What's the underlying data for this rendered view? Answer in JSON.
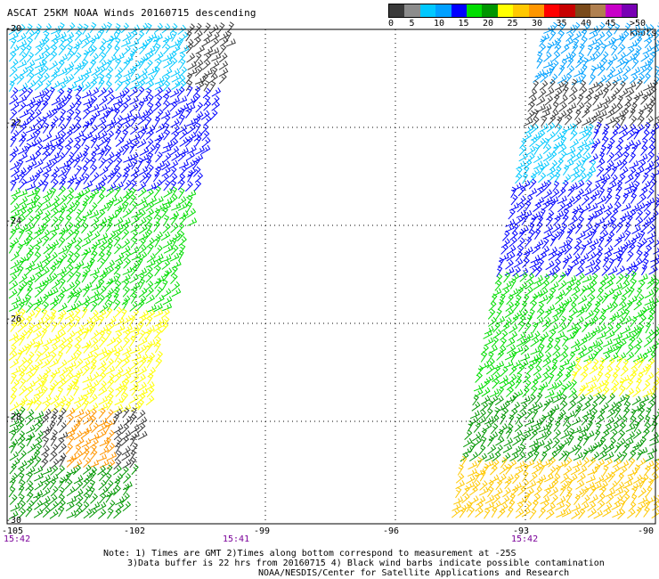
{
  "title": "ASCAT 25KM NOAA Winds 20160715 descending",
  "legend": {
    "colors": [
      "#3a3a3a",
      "#8c8c8c",
      "#00c8ff",
      "#00a0ff",
      "#0000ff",
      "#00dd00",
      "#009600",
      "#ffff00",
      "#ffc800",
      "#ff9600",
      "#ff0000",
      "#c80000",
      "#7a4a1a",
      "#b08050",
      "#c800c8",
      "#7800b4"
    ],
    "labels": [
      "0",
      "5",
      "10",
      "15",
      "20",
      "25",
      "30",
      "35",
      "40",
      "45",
      ">50 knots"
    ]
  },
  "axes": {
    "y_labels": [
      "-20",
      "-22",
      "-24",
      "-26",
      "-28",
      "-30"
    ],
    "x_labels": [
      "-105",
      "-102",
      "-99",
      "-96",
      "-93",
      "-90"
    ],
    "time_labels": [
      "15:42",
      "15:41",
      "15:42"
    ]
  },
  "notes": {
    "line1": "Note: 1) Times are GMT 2)Times along bottom correspond to measurement at -25S",
    "line2": "3)Data buffer is 22 hrs from 20160715 4) Black wind barbs indicate possible contamination",
    "line3": "NOAA/NESDIS/Center for Satellite Applications and Research"
  }
}
